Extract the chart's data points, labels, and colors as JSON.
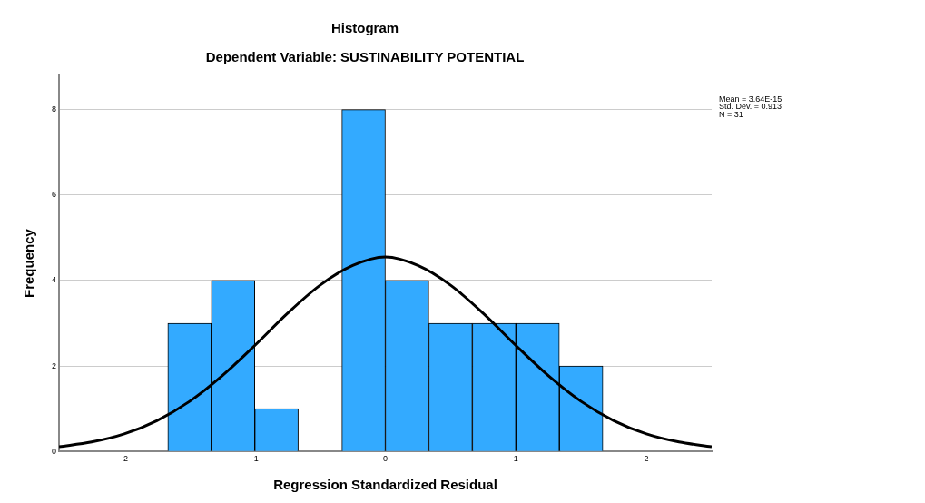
{
  "chart_data": {
    "type": "histogram",
    "title": "Histogram",
    "subtitle": "Dependent Variable: SUSTINABILITY POTENTIAL",
    "xlabel": "Regression Standardized Residual",
    "ylabel": "Frequency",
    "bins": [
      -1.667,
      -1.333,
      -1,
      -0.667,
      -0.333,
      0,
      0.333,
      0.667,
      1,
      1.333,
      1.667
    ],
    "values": [
      3,
      4,
      1,
      0,
      8,
      4,
      3,
      3,
      3,
      2
    ],
    "color": "#33aaff",
    "series": [
      {
        "type": "line",
        "color": "#000000",
        "x": [
          -2.5,
          -2.25,
          -2,
          -1.75,
          -1.5,
          -1.25,
          -1,
          -0.75,
          -0.5,
          -0.25,
          0,
          0.25,
          0.5,
          0.75,
          1,
          1.25,
          1.5,
          1.75,
          2,
          2.25,
          2.5
        ],
        "values": [
          0.11,
          0.22,
          0.41,
          0.72,
          1.17,
          1.77,
          2.48,
          3.23,
          3.89,
          4.35,
          4.55,
          4.35,
          3.89,
          3.23,
          2.48,
          1.77,
          1.17,
          0.72,
          0.41,
          0.22,
          0.11
        ]
      }
    ],
    "xlim": [
      -2.5,
      2.5
    ],
    "xticks": [
      -2,
      -1,
      0,
      1,
      2
    ],
    "ylim": [
      0,
      8.8
    ],
    "yticks": [
      0,
      2,
      4,
      6,
      8
    ],
    "grid": "y",
    "legend": false,
    "annotations": [
      "Mean = 3.64E-15",
      "Std. Dev. = 0.913",
      "N = 31"
    ]
  }
}
